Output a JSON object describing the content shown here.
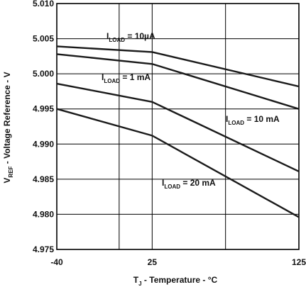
{
  "chart_data": {
    "type": "line",
    "xlabel": {
      "main": "T",
      "sub": "J",
      "rest": " - Temperature - °C"
    },
    "ylabel": {
      "main": "V",
      "sub": "REF",
      "rest": " - Voltage Reference - V"
    },
    "xlim": [
      -40,
      125
    ],
    "ylim": [
      4.975,
      5.01
    ],
    "x_ticks": [
      {
        "value": -40,
        "label": "-40"
      },
      {
        "value": 25,
        "label": "25"
      },
      {
        "value": 125,
        "label": "125"
      }
    ],
    "x_gridlines": [
      -40,
      2.5,
      25,
      75,
      125
    ],
    "y_ticks": [
      {
        "value": 4.975,
        "label": "4.975"
      },
      {
        "value": 4.98,
        "label": "4.980"
      },
      {
        "value": 4.985,
        "label": "4.985"
      },
      {
        "value": 4.99,
        "label": "4.990"
      },
      {
        "value": 4.995,
        "label": "4.995"
      },
      {
        "value": 5.0,
        "label": "5.000"
      },
      {
        "value": 5.005,
        "label": "5.005"
      },
      {
        "value": 5.01,
        "label": "5.010"
      }
    ],
    "grid": true,
    "series": [
      {
        "label": {
          "main": "I",
          "sub": "LOAD",
          "rest": " = 10µA"
        },
        "x": [
          -40,
          25,
          125
        ],
        "y": [
          5.0039,
          5.0031,
          4.9982
        ]
      },
      {
        "label": {
          "main": "I",
          "sub": "LOAD",
          "rest": " = 1 mA"
        },
        "x": [
          -40,
          25,
          125
        ],
        "y": [
          5.0028,
          5.0014,
          4.995
        ]
      },
      {
        "label": {
          "main": "I",
          "sub": "LOAD",
          "rest": " = 10 mA"
        },
        "x": [
          -40,
          25,
          125
        ],
        "y": [
          4.9986,
          4.996,
          4.9861
        ]
      },
      {
        "label": {
          "main": "I",
          "sub": "LOAD",
          "rest": " = 20 mA"
        },
        "x": [
          -40,
          25,
          125
        ],
        "y": [
          4.995,
          4.9912,
          4.9796
        ]
      }
    ]
  }
}
